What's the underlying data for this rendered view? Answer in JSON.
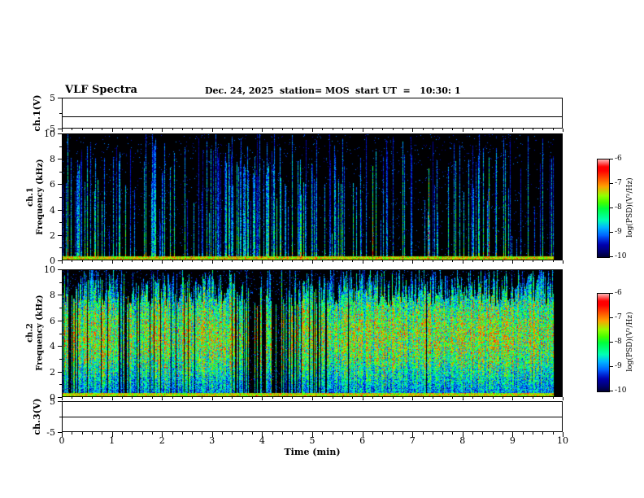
{
  "header": {
    "title": "VLF Spectra",
    "date": "Dec. 24, 2025",
    "station": "station= MOS",
    "start_ut": "start UT  =   10:30: 1"
  },
  "xaxis": {
    "label": "Time (min)",
    "lim": [
      0,
      10
    ],
    "ticks": [
      0,
      1,
      2,
      3,
      4,
      5,
      6,
      7,
      8,
      9,
      10
    ]
  },
  "chart_data": [
    {
      "id": "ch1-voltage",
      "type": "line",
      "ylabel": "ch.1(V)",
      "ylim": [
        -5,
        5
      ],
      "yticks": [
        5,
        -5
      ],
      "x": [
        0,
        10
      ],
      "values": [
        -1,
        -1
      ],
      "note": "flat horizontal waveform trace across the full 10 min record"
    },
    {
      "id": "ch1-spectrogram",
      "type": "heatmap",
      "ylabel_line1": "ch.1",
      "ylabel_line2": "Frequency (kHz)",
      "ylim": [
        0,
        10
      ],
      "yticks": [
        10,
        8,
        6,
        4,
        2,
        0
      ],
      "xlim": [
        0,
        10
      ],
      "zlabel": "log(PSD)(V²/Hz)",
      "zlim": [
        -10,
        -6
      ],
      "zticks": [
        -6,
        -7,
        -8,
        -9,
        -10
      ],
      "description": "sparse broadband vertical sferic impulses (blue/cyan, occasional green) on black background; persistent bright emission band below ~0.5 kHz",
      "render": {
        "seed": 20251224,
        "density": 0.45,
        "amp_min": 0.22,
        "amp_max": 0.68,
        "profile": "low",
        "speckle": 0.02,
        "band": 0.032,
        "full_height": false,
        "data_end_frac": 0.985
      }
    },
    {
      "id": "ch2-spectrogram",
      "type": "heatmap",
      "ylabel_line1": "ch.2",
      "ylabel_line2": "Frequency (kHz)",
      "ylim": [
        0,
        10
      ],
      "yticks": [
        10,
        8,
        6,
        4,
        2,
        0
      ],
      "xlim": [
        0,
        10
      ],
      "zlabel": "log(PSD)(V²/Hz)",
      "zlim": [
        -10,
        -6
      ],
      "zticks": [
        -6,
        -7,
        -8,
        -9,
        -10
      ],
      "description": "dense continuous sferic activity, green/cyan 2-9 kHz with yellow cores and dark vertical gaps; weaker blue below ~1.5 kHz with scattered red specks; thin bright band at 0 kHz",
      "render": {
        "seed": 424242,
        "density": 0.96,
        "amp_min": 0.45,
        "amp_max": 1.0,
        "profile": "mid",
        "speckle": 0.05,
        "band": 0.028,
        "full_height": true,
        "data_end_frac": 0.985
      }
    },
    {
      "id": "ch3-voltage",
      "type": "line",
      "ylabel": "ch.3(V)",
      "ylim": [
        -5,
        5
      ],
      "yticks": [
        5,
        -5
      ],
      "x": [
        0,
        10
      ],
      "values": [
        0,
        0
      ],
      "note": "flat horizontal waveform trace across the full 10 min record"
    }
  ]
}
